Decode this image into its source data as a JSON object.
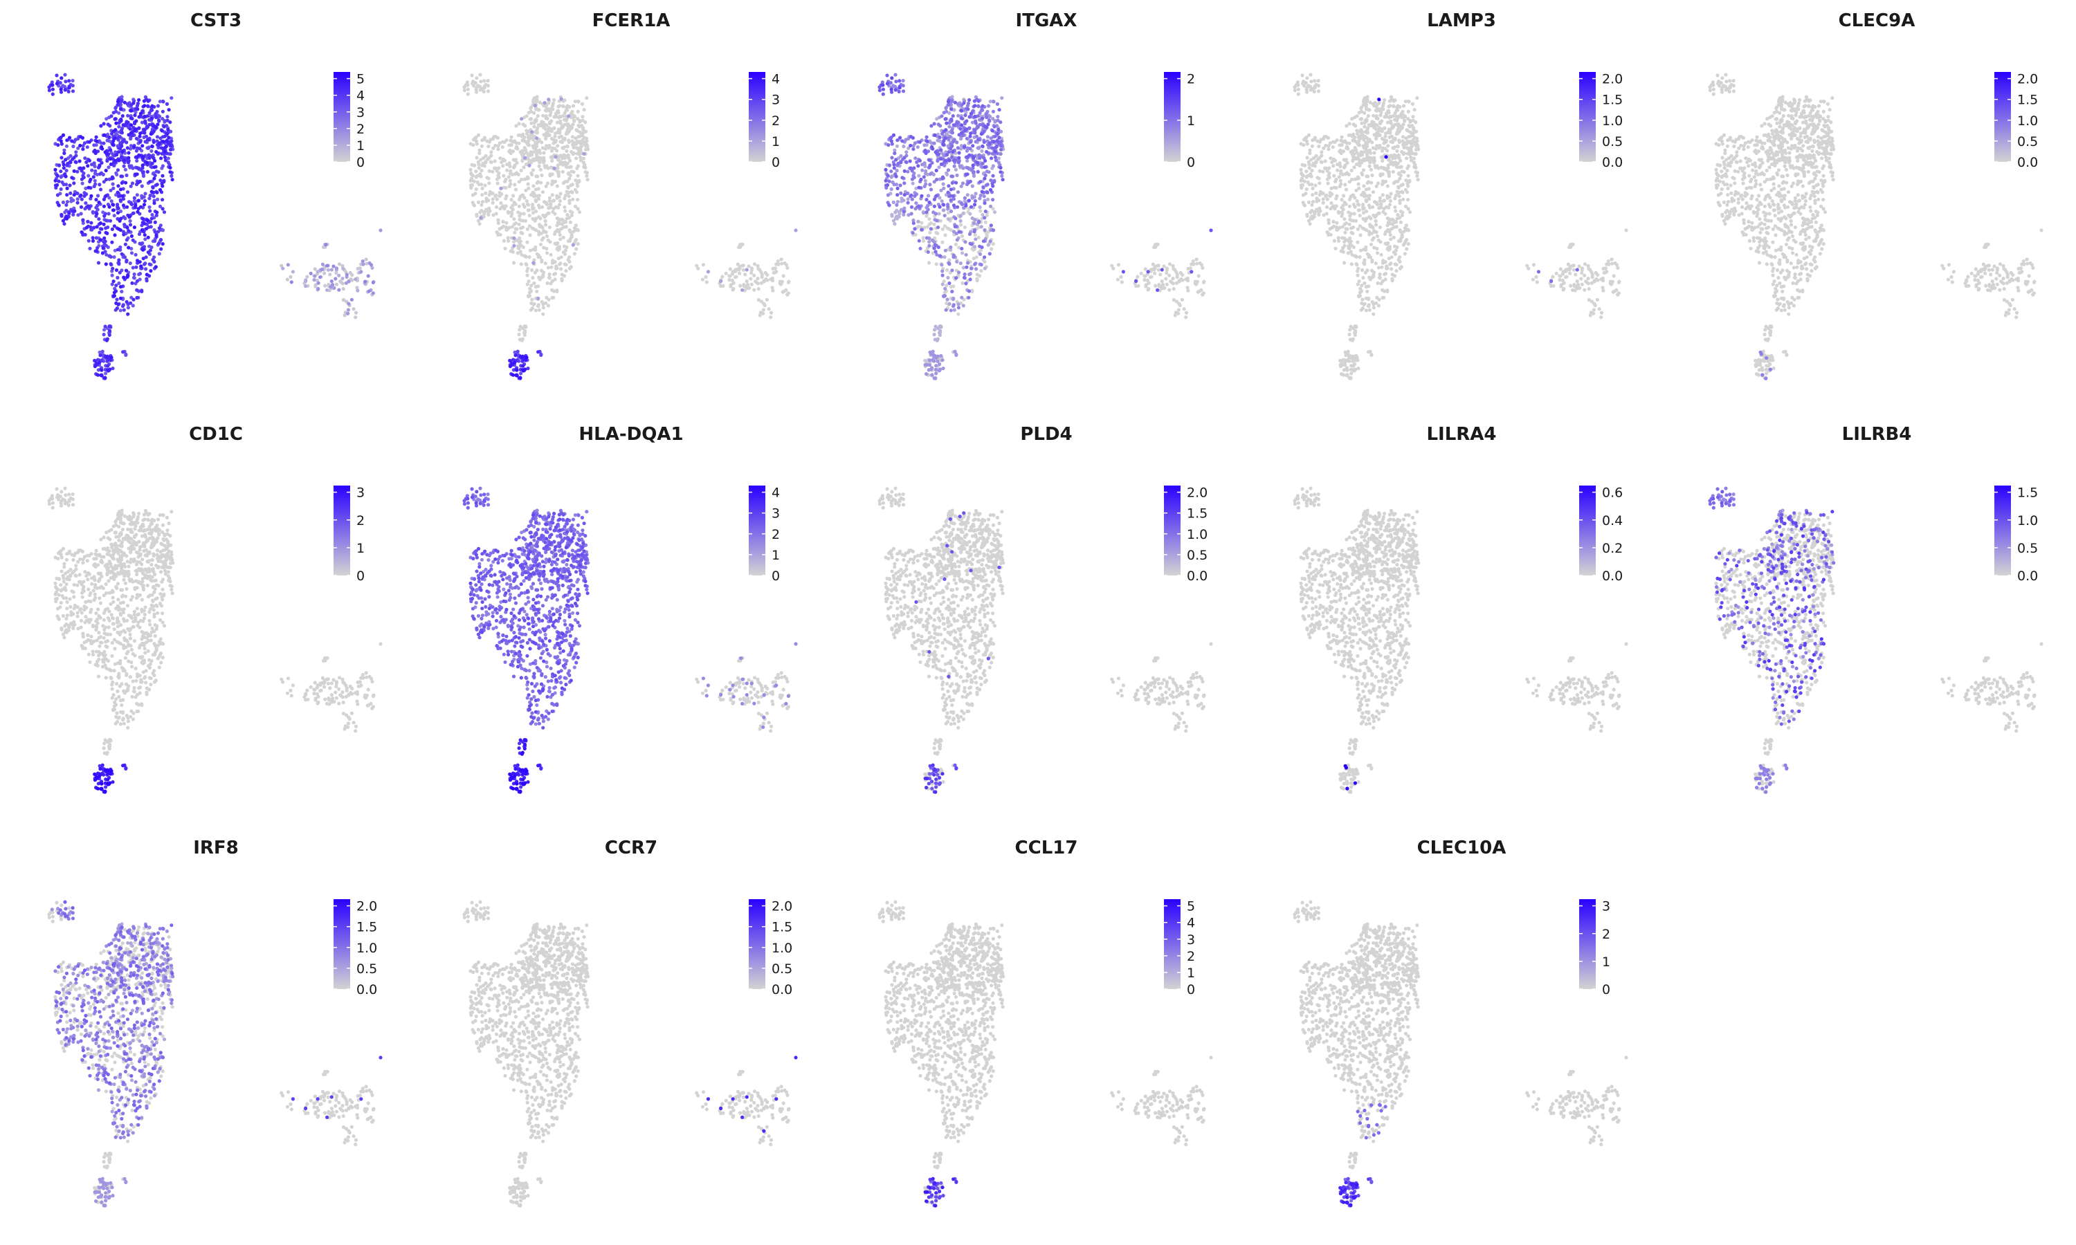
{
  "chart_data": {
    "type": "scatter",
    "description_kind": "feature-plot-grid",
    "colors": {
      "low": "#d3d3d3",
      "high": "#2b00ff",
      "background": "#ffffff"
    },
    "grid": false,
    "axes_visible": false,
    "legend_placement": "right",
    "panels": [
      {
        "title": "CST3",
        "ticks": [
          "0",
          "1",
          "2",
          "3",
          "4",
          "5"
        ],
        "pattern": "cst3"
      },
      {
        "title": "FCER1A",
        "ticks": [
          "0",
          "1",
          "2",
          "3",
          "4"
        ],
        "pattern": "fcer1a"
      },
      {
        "title": "ITGAX",
        "ticks": [
          "0",
          "1",
          "2"
        ],
        "pattern": "itgax"
      },
      {
        "title": "LAMP3",
        "ticks": [
          "0.0",
          "0.5",
          "1.0",
          "1.5",
          "2.0"
        ],
        "pattern": "lamp3"
      },
      {
        "title": "CLEC9A",
        "ticks": [
          "0.0",
          "0.5",
          "1.0",
          "1.5",
          "2.0"
        ],
        "pattern": "clec9a"
      },
      {
        "title": "CD1C",
        "ticks": [
          "0",
          "1",
          "2",
          "3"
        ],
        "pattern": "cd1c"
      },
      {
        "title": "HLA-DQA1",
        "ticks": [
          "0",
          "1",
          "2",
          "3",
          "4"
        ],
        "pattern": "hladqa1"
      },
      {
        "title": "PLD4",
        "ticks": [
          "0.0",
          "0.5",
          "1.0",
          "1.5",
          "2.0"
        ],
        "pattern": "pld4"
      },
      {
        "title": "LILRA4",
        "ticks": [
          "0.0",
          "0.2",
          "0.4",
          "0.6"
        ],
        "pattern": "lilra4"
      },
      {
        "title": "LILRB4",
        "ticks": [
          "0.0",
          "0.5",
          "1.0",
          "1.5"
        ],
        "pattern": "lilrb4"
      },
      {
        "title": "IRF8",
        "ticks": [
          "0.0",
          "0.5",
          "1.0",
          "1.5",
          "2.0"
        ],
        "pattern": "irf8"
      },
      {
        "title": "CCR7",
        "ticks": [
          "0.0",
          "0.5",
          "1.0",
          "1.5",
          "2.0"
        ],
        "pattern": "ccr7"
      },
      {
        "title": "CCL17",
        "ticks": [
          "0",
          "1",
          "2",
          "3",
          "4",
          "5"
        ],
        "pattern": "ccl17"
      },
      {
        "title": "CLEC10A",
        "ticks": [
          "0",
          "1",
          "2",
          "3"
        ],
        "pattern": "clec10a"
      }
    ]
  }
}
